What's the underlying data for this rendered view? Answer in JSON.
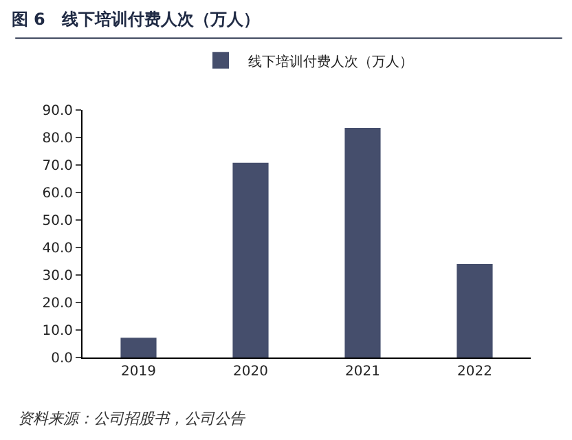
{
  "chart_data": {
    "type": "bar",
    "title": "图 6　线下培训付费人次（万人）",
    "categories": [
      "2019",
      "2020",
      "2021",
      "2022"
    ],
    "series": [
      {
        "name": "线下培训付费人次（万人）",
        "color": "#454e6c",
        "values": [
          7.2,
          70.8,
          83.5,
          34.0
        ]
      }
    ],
    "ylim": [
      0,
      90
    ],
    "yticks": [
      {
        "value": 0,
        "label": "0.0"
      },
      {
        "value": 10,
        "label": "10.0"
      },
      {
        "value": 20,
        "label": "20.0"
      },
      {
        "value": 30,
        "label": "30.0"
      },
      {
        "value": 40,
        "label": "40.0"
      },
      {
        "value": 50,
        "label": "50.0"
      },
      {
        "value": 60,
        "label": "60.0"
      },
      {
        "value": 70,
        "label": "70.0"
      },
      {
        "value": 80,
        "label": "80.0"
      },
      {
        "value": 90,
        "label": "90.0"
      }
    ],
    "grid": false,
    "legend": "top",
    "annotations": [
      "资料来源：公司招股书，公司公告"
    ]
  }
}
